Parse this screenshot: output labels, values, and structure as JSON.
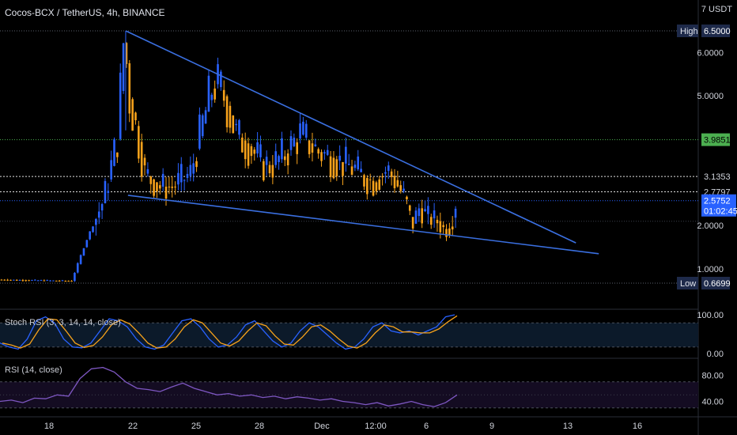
{
  "header": {
    "title": "Cocos-BCX / TetherUS, 4h, BINANCE",
    "unit": "7 USDT"
  },
  "price_axis": {
    "ticks": [
      "6.0000",
      "5.0000",
      "2.0000",
      "1.0000"
    ],
    "high_label": "High",
    "high_value": "6.5000",
    "low_label": "Low",
    "low_value": "0.6699",
    "level_green": "3.9851",
    "level_white_1": "3.1353",
    "level_white_2": "2.7797",
    "last_price": "2.5752",
    "countdown": "01:02:45"
  },
  "stoch": {
    "label": "Stoch RSI (3, 3, 14, 14, close)",
    "ticks": [
      "100.00",
      "0.00"
    ]
  },
  "rsi": {
    "label": "RSI (14, close)",
    "ticks": [
      "80.00",
      "40.00"
    ]
  },
  "time_axis": {
    "labels": [
      "18",
      "22",
      "25",
      "28",
      "Dec",
      "12:00",
      "6",
      "9",
      "13",
      "16"
    ]
  },
  "colors": {
    "up": "#2962ff",
    "down": "#f7a21b",
    "trendline": "#3a6fe0",
    "stoch_k": "#2962ff",
    "stoch_d": "#f7a21b",
    "rsi": "#7e57c2",
    "green_level": "#4caf50"
  },
  "chart_data": {
    "type": "candlestick",
    "title": "Cocos-BCX / TetherUS, 4h, BINANCE",
    "ylim": [
      0.6699,
      6.5
    ],
    "key_levels": {
      "high": 6.5,
      "low": 0.6699,
      "resistance": 3.9851,
      "level_a": 3.1353,
      "level_b": 2.7797,
      "last": 2.5752
    },
    "price_path": [
      [
        0,
        0.75
      ],
      [
        0.16,
        0.72
      ],
      [
        0.19,
        1.6
      ],
      [
        0.23,
        2.6
      ],
      [
        0.26,
        4.0
      ],
      [
        0.275,
        6.5
      ],
      [
        0.285,
        5.0
      ],
      [
        0.3,
        4.3
      ],
      [
        0.32,
        3.2
      ],
      [
        0.35,
        2.9
      ],
      [
        0.38,
        2.9
      ],
      [
        0.42,
        3.2
      ],
      [
        0.45,
        4.5
      ],
      [
        0.47,
        5.3
      ],
      [
        0.49,
        5.1
      ],
      [
        0.52,
        4.1
      ],
      [
        0.55,
        3.8
      ],
      [
        0.58,
        3.4
      ],
      [
        0.6,
        3.4
      ],
      [
        0.63,
        3.7
      ],
      [
        0.66,
        4.1
      ],
      [
        0.7,
        3.7
      ],
      [
        0.74,
        3.5
      ],
      [
        0.78,
        3.3
      ],
      [
        0.8,
        3.1
      ],
      [
        0.82,
        3.0
      ],
      [
        0.85,
        3.3
      ],
      [
        0.87,
        3.0
      ],
      [
        0.89,
        2.6
      ],
      [
        0.905,
        2.0
      ],
      [
        0.92,
        2.4
      ],
      [
        0.94,
        2.2
      ],
      [
        0.96,
        2.1
      ],
      [
        0.975,
        1.9
      ],
      [
        0.99,
        2.0
      ],
      [
        1.0,
        2.55
      ]
    ],
    "trendlines": [
      {
        "name": "upper",
        "from": [
          0.275,
          6.5
        ],
        "to": [
          1.26,
          1.6
        ]
      },
      {
        "name": "lower",
        "from": [
          0.28,
          2.7
        ],
        "to": [
          1.31,
          1.35
        ]
      }
    ],
    "stoch_rsi": {
      "ylim": [
        0,
        100
      ],
      "levels": [
        80,
        20
      ]
    },
    "rsi": {
      "ylim": [
        20,
        100
      ],
      "levels": [
        70,
        30
      ]
    }
  }
}
